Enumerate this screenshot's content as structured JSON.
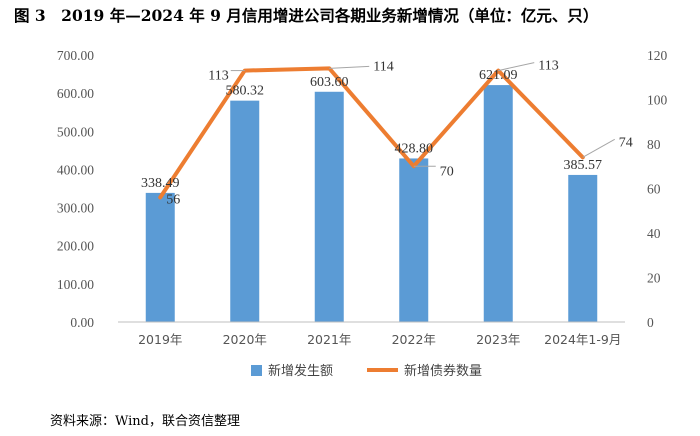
{
  "figure": {
    "title": "图 3　2019 年—2024 年 9 月信用增进公司各期业务新增情况（单位：亿元、只）",
    "source": "资料来源：Wind，联合资信整理"
  },
  "colors": {
    "bar": "#5B9BD5",
    "line": "#ED7D31",
    "axis": "#bfbfbf",
    "grid": "#d9d9d9"
  },
  "chart_data": {
    "type": "bar",
    "categories": [
      "2019年",
      "2020年",
      "2021年",
      "2022年",
      "2023年",
      "2024年1-9月"
    ],
    "series": [
      {
        "name": "新增发生额",
        "type": "bar",
        "axis": "left",
        "values": [
          338.49,
          580.32,
          603.6,
          428.8,
          621.09,
          385.57
        ],
        "labels": [
          "338.49",
          "580.32",
          "603.60",
          "428.80",
          "621.09",
          "385.57"
        ]
      },
      {
        "name": "新增债券数量",
        "type": "line",
        "axis": "right",
        "values": [
          56,
          113,
          114,
          70,
          113,
          74
        ],
        "labels": [
          "56",
          "113",
          "114",
          "70",
          "113",
          "74"
        ]
      }
    ],
    "left_axis": {
      "ylim": [
        0,
        700
      ],
      "ticks": [
        "0.00",
        "100.00",
        "200.00",
        "300.00",
        "400.00",
        "500.00",
        "600.00",
        "700.00"
      ]
    },
    "right_axis": {
      "ylim": [
        0,
        120
      ],
      "ticks": [
        "0",
        "20",
        "40",
        "60",
        "80",
        "100",
        "120"
      ]
    },
    "legend": {
      "position": "bottom",
      "entries": [
        "新增发生额",
        "新增债券数量"
      ]
    },
    "grid": false
  }
}
